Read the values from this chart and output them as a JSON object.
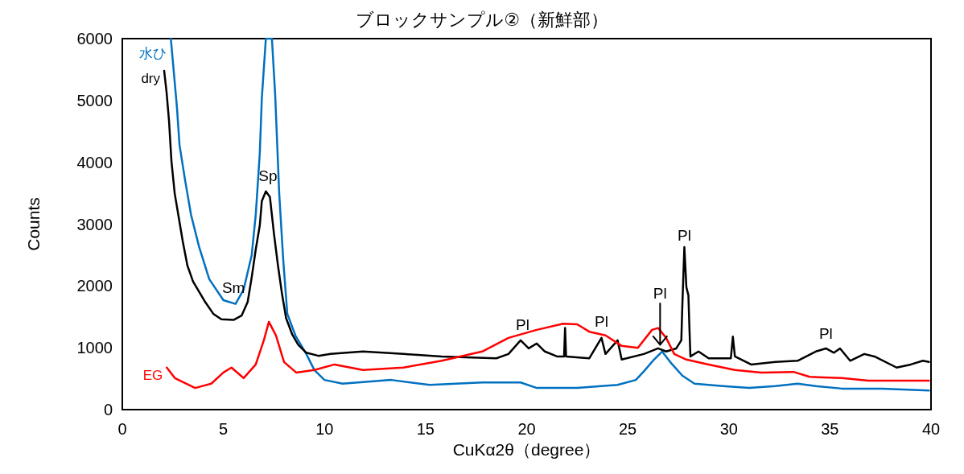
{
  "chart_data": {
    "type": "line",
    "title": "ブロックサンプル②（新鮮部）",
    "xlabel": "CuKα2θ（degree）",
    "ylabel": "Counts",
    "xlim": [
      0,
      40
    ],
    "xticks": [
      0,
      5,
      10,
      15,
      20,
      25,
      30,
      35,
      40
    ],
    "ylim": [
      0,
      6000
    ],
    "yticks": [
      0,
      1000,
      2000,
      3000,
      4000,
      5000,
      6000
    ],
    "grid": false,
    "legend": false,
    "marker": "none",
    "series": [
      {
        "name": "水ひ",
        "color": "#0070c0",
        "x": [
          2.4,
          2.7,
          2.83,
          3.1,
          3.4,
          3.8,
          4.3,
          5.0,
          5.6,
          6.0,
          6.4,
          6.6,
          6.8,
          6.9,
          7.1,
          7.4,
          7.56,
          7.76,
          7.96,
          8.16,
          8.56,
          9.1,
          9.5,
          10.0,
          10.9,
          13.3,
          15.2,
          17.8,
          19.7,
          20.5,
          22.5,
          24.5,
          25.4,
          25.8,
          26.3,
          26.7,
          27.1,
          27.7,
          28.3,
          29.7,
          31.0,
          32.3,
          33.4,
          34.3,
          35.6,
          37.6,
          39.9
        ],
        "values": [
          6000,
          4900,
          4280,
          3720,
          3150,
          2630,
          2110,
          1770,
          1710,
          1940,
          2500,
          3150,
          4150,
          5030,
          6000,
          6000,
          5100,
          3500,
          2420,
          1550,
          1200,
          900,
          640,
          480,
          420,
          480,
          400,
          440,
          440,
          350,
          350,
          400,
          480,
          620,
          810,
          940,
          770,
          550,
          420,
          380,
          350,
          380,
          420,
          380,
          340,
          340,
          310
        ]
      },
      {
        "name": "dry",
        "color": "#000000",
        "x": [
          2.07,
          2.19,
          2.31,
          2.43,
          2.59,
          2.79,
          2.99,
          3.22,
          3.5,
          4.1,
          4.5,
          4.9,
          5.5,
          5.9,
          6.2,
          6.4,
          6.6,
          6.8,
          6.9,
          7.1,
          7.3,
          7.5,
          7.7,
          7.9,
          8.1,
          8.4,
          8.7,
          9.1,
          9.7,
          10.3,
          11.9,
          13.9,
          15.8,
          18.5,
          19.1,
          19.7,
          20.1,
          20.5,
          20.9,
          21.5,
          21.85,
          21.9,
          21.95,
          23.1,
          23.7,
          23.9,
          24.5,
          24.7,
          25.8,
          26.5,
          26.9,
          27.4,
          27.65,
          27.7,
          27.8,
          27.9,
          28.0,
          28.05,
          28.1,
          28.5,
          29.0,
          30.1,
          30.2,
          30.3,
          31.1,
          32.3,
          33.4,
          34.3,
          34.8,
          35.2,
          35.5,
          36.0,
          36.7,
          37.2,
          38.3,
          39.0,
          39.6,
          39.9
        ],
        "values": [
          5480,
          5130,
          4670,
          4020,
          3500,
          3110,
          2720,
          2330,
          2070,
          1740,
          1550,
          1460,
          1450,
          1520,
          1740,
          2140,
          2590,
          2980,
          3370,
          3530,
          3440,
          2850,
          2330,
          1870,
          1480,
          1220,
          1050,
          920,
          870,
          900,
          940,
          900,
          860,
          830,
          900,
          1120,
          990,
          1070,
          940,
          860,
          860,
          1320,
          860,
          830,
          1160,
          900,
          1120,
          810,
          900,
          990,
          940,
          990,
          1120,
          1680,
          2630,
          1980,
          1850,
          1330,
          860,
          940,
          830,
          830,
          1180,
          860,
          730,
          770,
          790,
          940,
          990,
          920,
          990,
          790,
          900,
          860,
          680,
          730,
          790,
          770
        ]
      },
      {
        "name": "EG",
        "color": "#ff0000",
        "x": [
          2.2,
          2.6,
          3.6,
          4.4,
          5.0,
          5.4,
          6.0,
          6.6,
          7.0,
          7.25,
          7.6,
          8.0,
          8.6,
          9.5,
          10.5,
          11.9,
          13.9,
          15.8,
          17.8,
          19.1,
          20.5,
          21.8,
          22.5,
          23.1,
          23.9,
          24.7,
          25.5,
          26.2,
          26.5,
          26.9,
          27.3,
          27.9,
          29.0,
          30.3,
          31.6,
          33.2,
          34.0,
          35.6,
          36.9,
          39.9
        ],
        "values": [
          680,
          510,
          350,
          420,
          600,
          680,
          510,
          730,
          1120,
          1420,
          1200,
          770,
          600,
          640,
          730,
          640,
          680,
          790,
          940,
          1160,
          1290,
          1390,
          1380,
          1260,
          1200,
          1030,
          1000,
          1290,
          1320,
          1160,
          900,
          810,
          730,
          640,
          600,
          610,
          530,
          510,
          470,
          470
        ]
      }
    ],
    "annotations": [
      {
        "text": "Sm",
        "x": 5.5,
        "y": 1800
      },
      {
        "text": "Sp",
        "x": 7.2,
        "y": 3600
      },
      {
        "text": "Pl",
        "x": 19.8,
        "y": 1200
      },
      {
        "text": "Pl",
        "x": 23.7,
        "y": 1250
      },
      {
        "text": "Pl",
        "x": 26.6,
        "y": 1050
      },
      {
        "text": "Pl",
        "x": 27.8,
        "y": 2640
      },
      {
        "text": "Pl",
        "x": 34.8,
        "y": 1050
      }
    ]
  }
}
